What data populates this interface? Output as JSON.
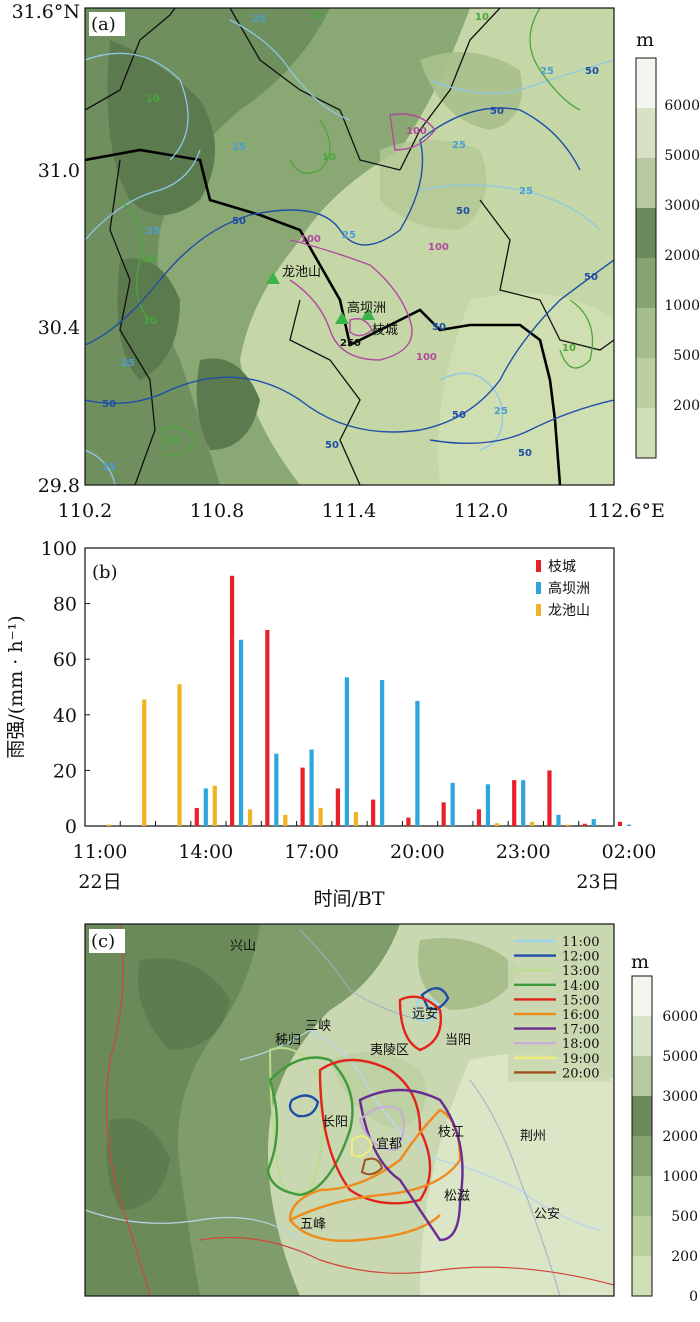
{
  "chart_data": [
    {
      "type": "map",
      "panel_label": "(a)",
      "x_ticks": [
        "110.2",
        "110.8",
        "111.4",
        "112.0",
        "112.6°E"
      ],
      "y_ticks": [
        "31.6°N",
        "31.0",
        "30.4",
        "29.8"
      ],
      "xlim": [
        110.2,
        112.6
      ],
      "ylim": [
        29.8,
        31.6
      ],
      "colorbar_unit": "m",
      "colorbar_labels": [
        "6000",
        "5000",
        "3000",
        "2000",
        "1000",
        "500",
        "200"
      ],
      "stations": [
        "龙池山",
        "高坝洲",
        "枝城"
      ],
      "contour_labels": [
        "10",
        "25",
        "50",
        "100",
        "250"
      ]
    },
    {
      "type": "bar",
      "panel_label": "(b)",
      "ylabel": "雨强/(mm · h⁻¹)",
      "xlabel": "时间/BT",
      "ylim": [
        0,
        100
      ],
      "y_ticks": [
        "0",
        "20",
        "40",
        "60",
        "80",
        "100"
      ],
      "x_tick_labels": [
        "11:00",
        "14:00",
        "17:00",
        "20:00",
        "23:00",
        "02:00"
      ],
      "x_sub_labels": [
        "22日",
        "23日"
      ],
      "categories": [
        "11:00",
        "12:00",
        "13:00",
        "14:00",
        "15:00",
        "16:00",
        "17:00",
        "18:00",
        "19:00",
        "20:00",
        "21:00",
        "22:00",
        "23:00",
        "00:00",
        "01:00",
        "02:00"
      ],
      "series": [
        {
          "name": "枝城",
          "color": "#e8202a",
          "values": [
            0,
            0,
            0,
            6.5,
            90,
            70.5,
            21,
            13.5,
            9.5,
            3,
            8.5,
            6,
            16.5,
            20,
            0.8,
            1.5
          ]
        },
        {
          "name": "高坝洲",
          "color": "#2ea6dc",
          "values": [
            0,
            0,
            0,
            13.5,
            67,
            26,
            27.5,
            53.5,
            52.5,
            45,
            15.5,
            15,
            16.5,
            4,
            2.5,
            0.5
          ]
        },
        {
          "name": "龙池山",
          "color": "#f0b323",
          "values": [
            0.5,
            45.5,
            51,
            14.5,
            6,
            4,
            6.5,
            5,
            0,
            0,
            0,
            1,
            1.5,
            0.5,
            0,
            0
          ]
        }
      ]
    },
    {
      "type": "map",
      "panel_label": "(c)",
      "colorbar_unit": "m",
      "colorbar_labels": [
        "6000",
        "5000",
        "3000",
        "2000",
        "1000",
        "500",
        "200",
        "0"
      ],
      "legend": [
        {
          "label": "11:00",
          "color": "#9fd4ee"
        },
        {
          "label": "12:00",
          "color": "#1f4ea8"
        },
        {
          "label": "13:00",
          "color": "#b9dc8e"
        },
        {
          "label": "14:00",
          "color": "#3f9a3a"
        },
        {
          "label": "15:00",
          "color": "#e2231a"
        },
        {
          "label": "16:00",
          "color": "#ef8a1c"
        },
        {
          "label": "17:00",
          "color": "#6a2b92"
        },
        {
          "label": "18:00",
          "color": "#c7aed6"
        },
        {
          "label": "19:00",
          "color": "#f2ec7a"
        },
        {
          "label": "20:00",
          "color": "#a0521c"
        }
      ],
      "places": [
        "兴山",
        "远安",
        "三峡",
        "秭归",
        "夷陵区",
        "当阳",
        "长阳",
        "宜都",
        "枝江",
        "荆州",
        "五峰",
        "松滋",
        "公安"
      ]
    }
  ]
}
